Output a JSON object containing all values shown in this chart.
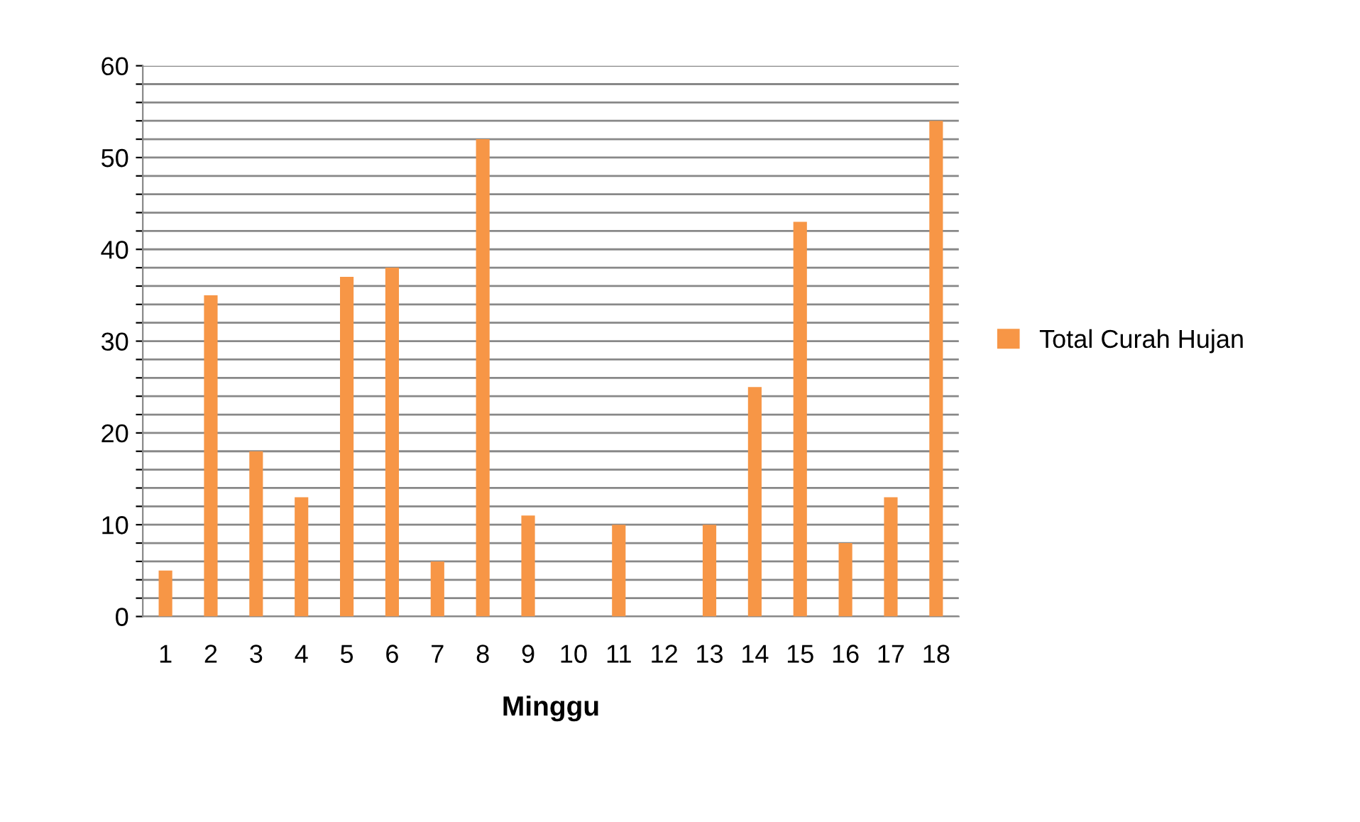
{
  "chart_data": {
    "type": "bar",
    "xlabel": "Minggu",
    "categories": [
      "1",
      "2",
      "3",
      "4",
      "5",
      "6",
      "7",
      "8",
      "9",
      "10",
      "11",
      "12",
      "13",
      "14",
      "15",
      "16",
      "17",
      "18"
    ],
    "series": [
      {
        "name": "Total Curah Hujan",
        "color": "#f79646",
        "values": [
          5,
          35,
          18,
          13,
          37,
          38,
          6,
          52,
          11,
          0,
          10,
          0,
          10,
          25,
          43,
          8,
          13,
          54
        ]
      }
    ],
    "ylim": [
      0,
      60
    ],
    "yticks": [
      0,
      {
        "value": 2,
        "label": null
      },
      {
        "value": 4,
        "label": null
      },
      {
        "value": 6,
        "label": null
      },
      {
        "value": 8,
        "label": null
      },
      10,
      {
        "value": 12,
        "label": null
      },
      {
        "value": 14,
        "label": null
      },
      {
        "value": 16,
        "label": null
      },
      {
        "value": 18,
        "label": null
      },
      20,
      {
        "value": 22,
        "label": null
      },
      {
        "value": 24,
        "label": null
      },
      {
        "value": 26,
        "label": null
      },
      {
        "value": 28,
        "label": null
      },
      30,
      {
        "value": 32,
        "label": null
      },
      {
        "value": 34,
        "label": null
      },
      {
        "value": 36,
        "label": null
      },
      {
        "value": 38,
        "label": null
      },
      40,
      {
        "value": 42,
        "label": null
      },
      {
        "value": 44,
        "label": null
      },
      {
        "value": 46,
        "label": null
      },
      {
        "value": 48,
        "label": null
      },
      50,
      {
        "value": 52,
        "label": null
      },
      {
        "value": 54,
        "label": null
      },
      {
        "value": 56,
        "label": null
      },
      {
        "value": 58,
        "label": null
      },
      60
    ],
    "grid": "y",
    "legend": "right"
  }
}
